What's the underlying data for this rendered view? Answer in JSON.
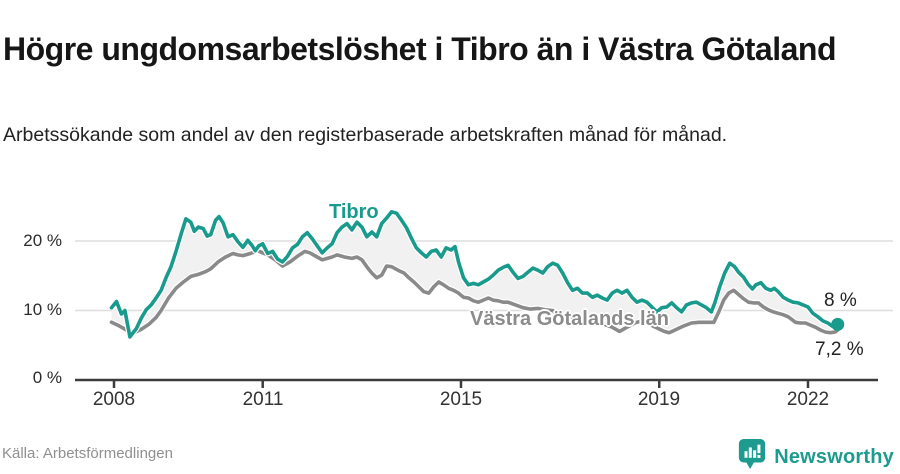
{
  "header": {
    "title": "Högre ungdomsarbetslöshet i Tibro än i Västra Götaland",
    "subtitle": "Arbetssökande som andel av den registerbaserade arbetskraften månad för månad."
  },
  "footer": {
    "source": "Källa: Arbetsförmedlingen",
    "brand_name": "Newsworthy",
    "brand_color": "#1d9b8f"
  },
  "chart_data": {
    "type": "line",
    "title": "Högre ungdomsarbetslöshet i Tibro än i Västra Götaland",
    "ylabel": "Arbetssökande som andel av arbetskraften (%)",
    "xlabel": "",
    "grid": "horizontal",
    "legend_position": "inline-labels",
    "xlim": [
      2007.8,
      2023.0
    ],
    "ylim": [
      0,
      27.5
    ],
    "x_ticks": [
      2008,
      2011,
      2015,
      2019,
      2022
    ],
    "x_tick_labels": [
      "2008",
      "2011",
      "2015",
      "2019",
      "2022"
    ],
    "y_ticks": [
      0,
      10,
      20
    ],
    "y_tick_labels": [
      "0 %",
      "10 %",
      "20 %"
    ],
    "grid_color": "#dedede",
    "axis_color": "#3c3c3c",
    "band_fill": "#f1f1f1",
    "series": [
      {
        "name": "Tibro",
        "color": "#189a8c",
        "end_label": "8 %",
        "end_value": 8.0,
        "points": [
          [
            2007.95,
            10.4
          ],
          [
            2008.05,
            11.3
          ],
          [
            2008.15,
            9.5
          ],
          [
            2008.22,
            10.0
          ],
          [
            2008.32,
            6.2
          ],
          [
            2008.45,
            7.4
          ],
          [
            2008.55,
            8.9
          ],
          [
            2008.65,
            10.1
          ],
          [
            2008.75,
            10.8
          ],
          [
            2008.85,
            11.8
          ],
          [
            2008.95,
            12.9
          ],
          [
            2009.05,
            14.7
          ],
          [
            2009.15,
            16.3
          ],
          [
            2009.25,
            18.5
          ],
          [
            2009.35,
            20.9
          ],
          [
            2009.45,
            23.2
          ],
          [
            2009.55,
            22.7
          ],
          [
            2009.62,
            21.4
          ],
          [
            2009.7,
            22.0
          ],
          [
            2009.8,
            21.8
          ],
          [
            2009.88,
            20.7
          ],
          [
            2009.95,
            20.9
          ],
          [
            2010.05,
            23.0
          ],
          [
            2010.12,
            23.5
          ],
          [
            2010.2,
            22.6
          ],
          [
            2010.3,
            20.6
          ],
          [
            2010.4,
            20.9
          ],
          [
            2010.5,
            19.9
          ],
          [
            2010.6,
            19.1
          ],
          [
            2010.7,
            20.1
          ],
          [
            2010.78,
            19.4
          ],
          [
            2010.85,
            18.6
          ],
          [
            2010.92,
            19.3
          ],
          [
            2011.0,
            19.6
          ],
          [
            2011.1,
            18.2
          ],
          [
            2011.2,
            18.5
          ],
          [
            2011.3,
            17.4
          ],
          [
            2011.4,
            17.0
          ],
          [
            2011.5,
            17.8
          ],
          [
            2011.6,
            19.0
          ],
          [
            2011.7,
            19.5
          ],
          [
            2011.8,
            20.6
          ],
          [
            2011.9,
            21.2
          ],
          [
            2012.0,
            20.3
          ],
          [
            2012.1,
            19.3
          ],
          [
            2012.2,
            18.3
          ],
          [
            2012.3,
            19.0
          ],
          [
            2012.4,
            19.6
          ],
          [
            2012.5,
            21.2
          ],
          [
            2012.6,
            22.0
          ],
          [
            2012.7,
            22.5
          ],
          [
            2012.8,
            21.6
          ],
          [
            2012.9,
            22.7
          ],
          [
            2013.0,
            22.0
          ],
          [
            2013.1,
            20.6
          ],
          [
            2013.2,
            21.3
          ],
          [
            2013.3,
            20.6
          ],
          [
            2013.4,
            22.5
          ],
          [
            2013.5,
            23.3
          ],
          [
            2013.6,
            24.2
          ],
          [
            2013.7,
            24.0
          ],
          [
            2013.8,
            23.0
          ],
          [
            2013.9,
            21.9
          ],
          [
            2014.0,
            20.4
          ],
          [
            2014.1,
            19.0
          ],
          [
            2014.2,
            18.3
          ],
          [
            2014.3,
            17.7
          ],
          [
            2014.4,
            18.5
          ],
          [
            2014.5,
            18.7
          ],
          [
            2014.6,
            17.7
          ],
          [
            2014.7,
            19.0
          ],
          [
            2014.8,
            18.7
          ],
          [
            2014.88,
            19.2
          ],
          [
            2014.95,
            17.0
          ],
          [
            2015.05,
            14.7
          ],
          [
            2015.15,
            13.7
          ],
          [
            2015.25,
            13.9
          ],
          [
            2015.35,
            13.7
          ],
          [
            2015.45,
            14.1
          ],
          [
            2015.55,
            14.5
          ],
          [
            2015.65,
            15.1
          ],
          [
            2015.75,
            15.8
          ],
          [
            2015.85,
            16.2
          ],
          [
            2015.95,
            16.5
          ],
          [
            2016.05,
            15.5
          ],
          [
            2016.15,
            14.6
          ],
          [
            2016.25,
            14.9
          ],
          [
            2016.35,
            15.5
          ],
          [
            2016.45,
            16.1
          ],
          [
            2016.55,
            15.8
          ],
          [
            2016.65,
            15.4
          ],
          [
            2016.75,
            16.3
          ],
          [
            2016.85,
            16.8
          ],
          [
            2016.95,
            16.5
          ],
          [
            2017.05,
            15.4
          ],
          [
            2017.15,
            14.0
          ],
          [
            2017.25,
            12.9
          ],
          [
            2017.35,
            13.2
          ],
          [
            2017.45,
            12.5
          ],
          [
            2017.55,
            12.5
          ],
          [
            2017.65,
            11.9
          ],
          [
            2017.75,
            12.2
          ],
          [
            2017.85,
            11.8
          ],
          [
            2017.95,
            11.5
          ],
          [
            2018.05,
            12.5
          ],
          [
            2018.15,
            12.9
          ],
          [
            2018.25,
            12.5
          ],
          [
            2018.35,
            12.9
          ],
          [
            2018.45,
            11.9
          ],
          [
            2018.55,
            11.2
          ],
          [
            2018.65,
            11.5
          ],
          [
            2018.75,
            11.2
          ],
          [
            2018.85,
            10.5
          ],
          [
            2018.95,
            9.8
          ],
          [
            2019.05,
            10.4
          ],
          [
            2019.15,
            10.5
          ],
          [
            2019.25,
            11.1
          ],
          [
            2019.35,
            10.4
          ],
          [
            2019.45,
            9.8
          ],
          [
            2019.55,
            10.8
          ],
          [
            2019.65,
            11.1
          ],
          [
            2019.75,
            11.2
          ],
          [
            2019.85,
            10.8
          ],
          [
            2019.95,
            10.4
          ],
          [
            2020.05,
            9.8
          ],
          [
            2020.12,
            11.1
          ],
          [
            2020.22,
            13.4
          ],
          [
            2020.32,
            15.4
          ],
          [
            2020.42,
            16.8
          ],
          [
            2020.52,
            16.3
          ],
          [
            2020.6,
            15.5
          ],
          [
            2020.7,
            14.8
          ],
          [
            2020.8,
            13.7
          ],
          [
            2020.88,
            13.1
          ],
          [
            2020.95,
            13.7
          ],
          [
            2021.05,
            14.0
          ],
          [
            2021.15,
            13.2
          ],
          [
            2021.25,
            12.9
          ],
          [
            2021.32,
            13.2
          ],
          [
            2021.4,
            12.7
          ],
          [
            2021.5,
            11.9
          ],
          [
            2021.6,
            11.5
          ],
          [
            2021.7,
            11.2
          ],
          [
            2021.8,
            11.1
          ],
          [
            2021.9,
            10.8
          ],
          [
            2022.0,
            10.5
          ],
          [
            2022.1,
            9.6
          ],
          [
            2022.2,
            9.1
          ],
          [
            2022.3,
            8.5
          ],
          [
            2022.4,
            8.2
          ],
          [
            2022.5,
            7.7
          ],
          [
            2022.6,
            8.0
          ]
        ]
      },
      {
        "name": "Västra Götalands län",
        "color": "#8a8a8a",
        "end_label": "7,2 %",
        "end_value": 7.2,
        "points": [
          [
            2007.95,
            8.3
          ],
          [
            2008.1,
            7.8
          ],
          [
            2008.25,
            7.2
          ],
          [
            2008.4,
            6.8
          ],
          [
            2008.55,
            7.3
          ],
          [
            2008.7,
            8.0
          ],
          [
            2008.85,
            9.0
          ],
          [
            2008.95,
            10.0
          ],
          [
            2009.1,
            11.8
          ],
          [
            2009.25,
            13.2
          ],
          [
            2009.4,
            14.1
          ],
          [
            2009.55,
            14.9
          ],
          [
            2009.7,
            15.2
          ],
          [
            2009.85,
            15.6
          ],
          [
            2009.95,
            16.0
          ],
          [
            2010.1,
            17.0
          ],
          [
            2010.25,
            17.7
          ],
          [
            2010.4,
            18.2
          ],
          [
            2010.5,
            18.0
          ],
          [
            2010.6,
            17.9
          ],
          [
            2010.75,
            18.2
          ],
          [
            2010.9,
            18.6
          ],
          [
            2011.0,
            18.3
          ],
          [
            2011.1,
            18.0
          ],
          [
            2011.25,
            17.3
          ],
          [
            2011.4,
            16.4
          ],
          [
            2011.55,
            17.0
          ],
          [
            2011.7,
            17.8
          ],
          [
            2011.85,
            18.5
          ],
          [
            2011.95,
            18.3
          ],
          [
            2012.1,
            17.7
          ],
          [
            2012.2,
            17.3
          ],
          [
            2012.3,
            17.5
          ],
          [
            2012.4,
            17.7
          ],
          [
            2012.5,
            18.0
          ],
          [
            2012.65,
            17.7
          ],
          [
            2012.8,
            17.5
          ],
          [
            2012.9,
            17.7
          ],
          [
            2013.0,
            17.3
          ],
          [
            2013.1,
            16.3
          ],
          [
            2013.2,
            15.4
          ],
          [
            2013.3,
            14.7
          ],
          [
            2013.4,
            15.1
          ],
          [
            2013.5,
            16.4
          ],
          [
            2013.6,
            16.3
          ],
          [
            2013.73,
            15.8
          ],
          [
            2013.85,
            15.4
          ],
          [
            2013.95,
            14.7
          ],
          [
            2014.05,
            14.1
          ],
          [
            2014.15,
            13.4
          ],
          [
            2014.25,
            12.7
          ],
          [
            2014.35,
            12.5
          ],
          [
            2014.45,
            13.4
          ],
          [
            2014.55,
            14.1
          ],
          [
            2014.65,
            13.7
          ],
          [
            2014.75,
            13.2
          ],
          [
            2014.85,
            12.9
          ],
          [
            2014.95,
            12.5
          ],
          [
            2015.05,
            11.9
          ],
          [
            2015.15,
            11.8
          ],
          [
            2015.25,
            11.4
          ],
          [
            2015.35,
            11.2
          ],
          [
            2015.45,
            11.5
          ],
          [
            2015.55,
            11.8
          ],
          [
            2015.65,
            11.5
          ],
          [
            2015.75,
            11.4
          ],
          [
            2015.85,
            11.2
          ],
          [
            2015.95,
            11.2
          ],
          [
            2016.1,
            10.8
          ],
          [
            2016.25,
            10.4
          ],
          [
            2016.4,
            10.2
          ],
          [
            2016.55,
            10.3
          ],
          [
            2016.7,
            10.1
          ],
          [
            2016.85,
            10.0
          ],
          [
            2017.0,
            9.1
          ],
          [
            2017.15,
            8.8
          ],
          [
            2017.3,
            8.6
          ],
          [
            2017.45,
            8.9
          ],
          [
            2017.6,
            8.5
          ],
          [
            2017.75,
            8.2
          ],
          [
            2017.9,
            8.0
          ],
          [
            2018.05,
            7.6
          ],
          [
            2018.2,
            7.0
          ],
          [
            2018.35,
            7.6
          ],
          [
            2018.5,
            8.2
          ],
          [
            2018.65,
            8.5
          ],
          [
            2018.8,
            8.0
          ],
          [
            2018.95,
            7.5
          ],
          [
            2019.1,
            7.0
          ],
          [
            2019.2,
            6.8
          ],
          [
            2019.35,
            7.3
          ],
          [
            2019.5,
            7.8
          ],
          [
            2019.65,
            8.2
          ],
          [
            2019.8,
            8.3
          ],
          [
            2019.95,
            8.3
          ],
          [
            2020.1,
            8.3
          ],
          [
            2020.2,
            9.8
          ],
          [
            2020.3,
            11.5
          ],
          [
            2020.4,
            12.5
          ],
          [
            2020.5,
            12.9
          ],
          [
            2020.6,
            12.3
          ],
          [
            2020.7,
            11.7
          ],
          [
            2020.8,
            11.2
          ],
          [
            2020.9,
            11.1
          ],
          [
            2021.0,
            11.1
          ],
          [
            2021.1,
            10.5
          ],
          [
            2021.2,
            10.1
          ],
          [
            2021.3,
            9.8
          ],
          [
            2021.4,
            9.6
          ],
          [
            2021.5,
            9.4
          ],
          [
            2021.6,
            9.1
          ],
          [
            2021.75,
            8.3
          ],
          [
            2021.85,
            8.2
          ],
          [
            2021.95,
            8.2
          ],
          [
            2022.05,
            7.9
          ],
          [
            2022.15,
            7.6
          ],
          [
            2022.25,
            7.2
          ],
          [
            2022.35,
            6.9
          ],
          [
            2022.45,
            6.8
          ],
          [
            2022.55,
            6.9
          ],
          [
            2022.6,
            7.2
          ]
        ]
      }
    ]
  }
}
